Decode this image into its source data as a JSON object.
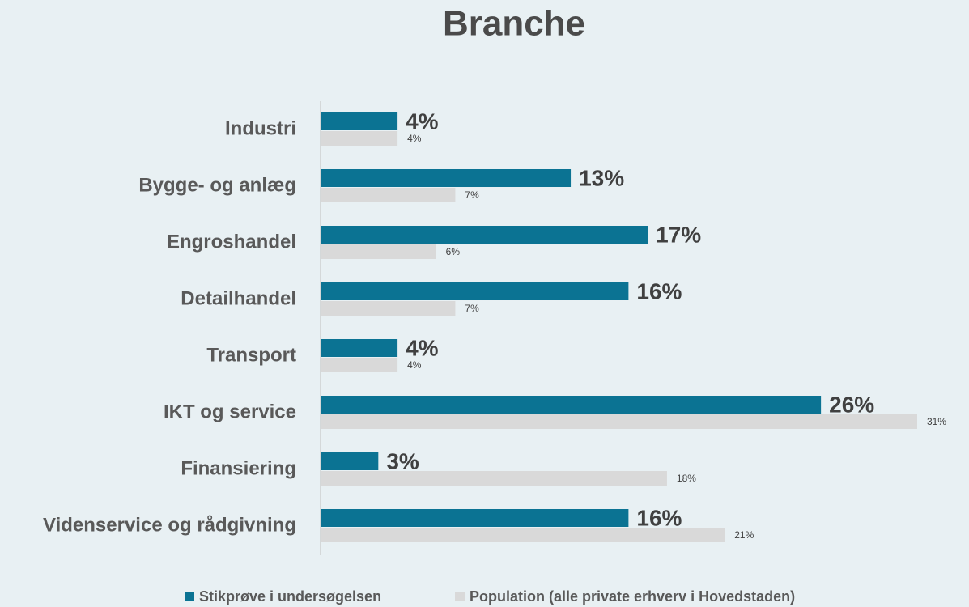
{
  "chart_data": {
    "type": "hbar",
    "title": "Branche",
    "categories": [
      "Industri",
      "Bygge- og anlæg",
      "Engroshandel",
      "Detailhandel",
      "Transport",
      "IKT og service",
      "Finansiering",
      "Videnservice og rådgivning"
    ],
    "series": [
      {
        "name": "Stikprøve i undersøgelsen",
        "color": "#0b7393",
        "values": [
          4,
          13,
          17,
          16,
          4,
          26,
          3,
          16
        ],
        "value_labels": [
          "4%",
          "13%",
          "17%",
          "16%",
          "4%",
          "26%",
          "3%",
          "16%"
        ]
      },
      {
        "name": "Population (alle private erhverv i Hovedstaden)",
        "color": "#d9d9d9",
        "values": [
          4,
          7,
          6,
          7,
          4,
          31,
          18,
          21
        ],
        "value_labels": [
          "4%",
          "7%",
          "6%",
          "7%",
          "4%",
          "31%",
          "18%",
          "21%"
        ]
      }
    ],
    "legend": "bottom"
  }
}
